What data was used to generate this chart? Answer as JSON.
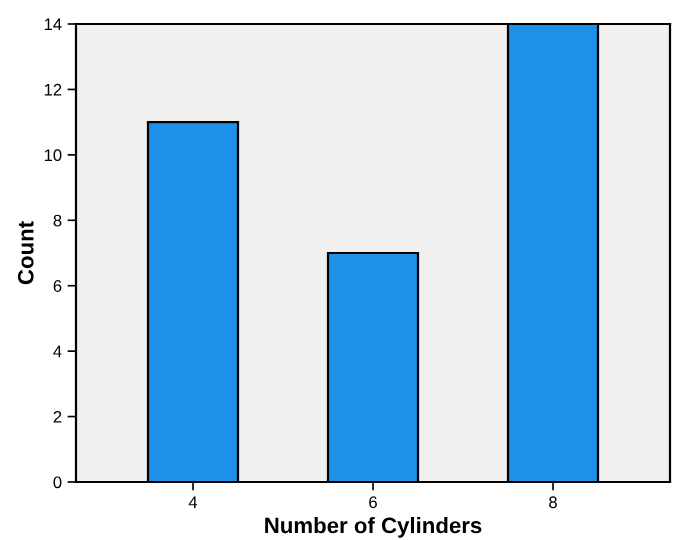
{
  "chart_data": {
    "type": "bar",
    "xlabel": "Number of Cylinders",
    "ylabel": "Count",
    "categories": [
      "4",
      "6",
      "8"
    ],
    "values": [
      11,
      7,
      14
    ],
    "color": "#1e90e8",
    "ylim": [
      0,
      14
    ],
    "yticks": [
      0,
      2,
      4,
      6,
      8,
      10,
      12,
      14
    ],
    "grid": false
  }
}
